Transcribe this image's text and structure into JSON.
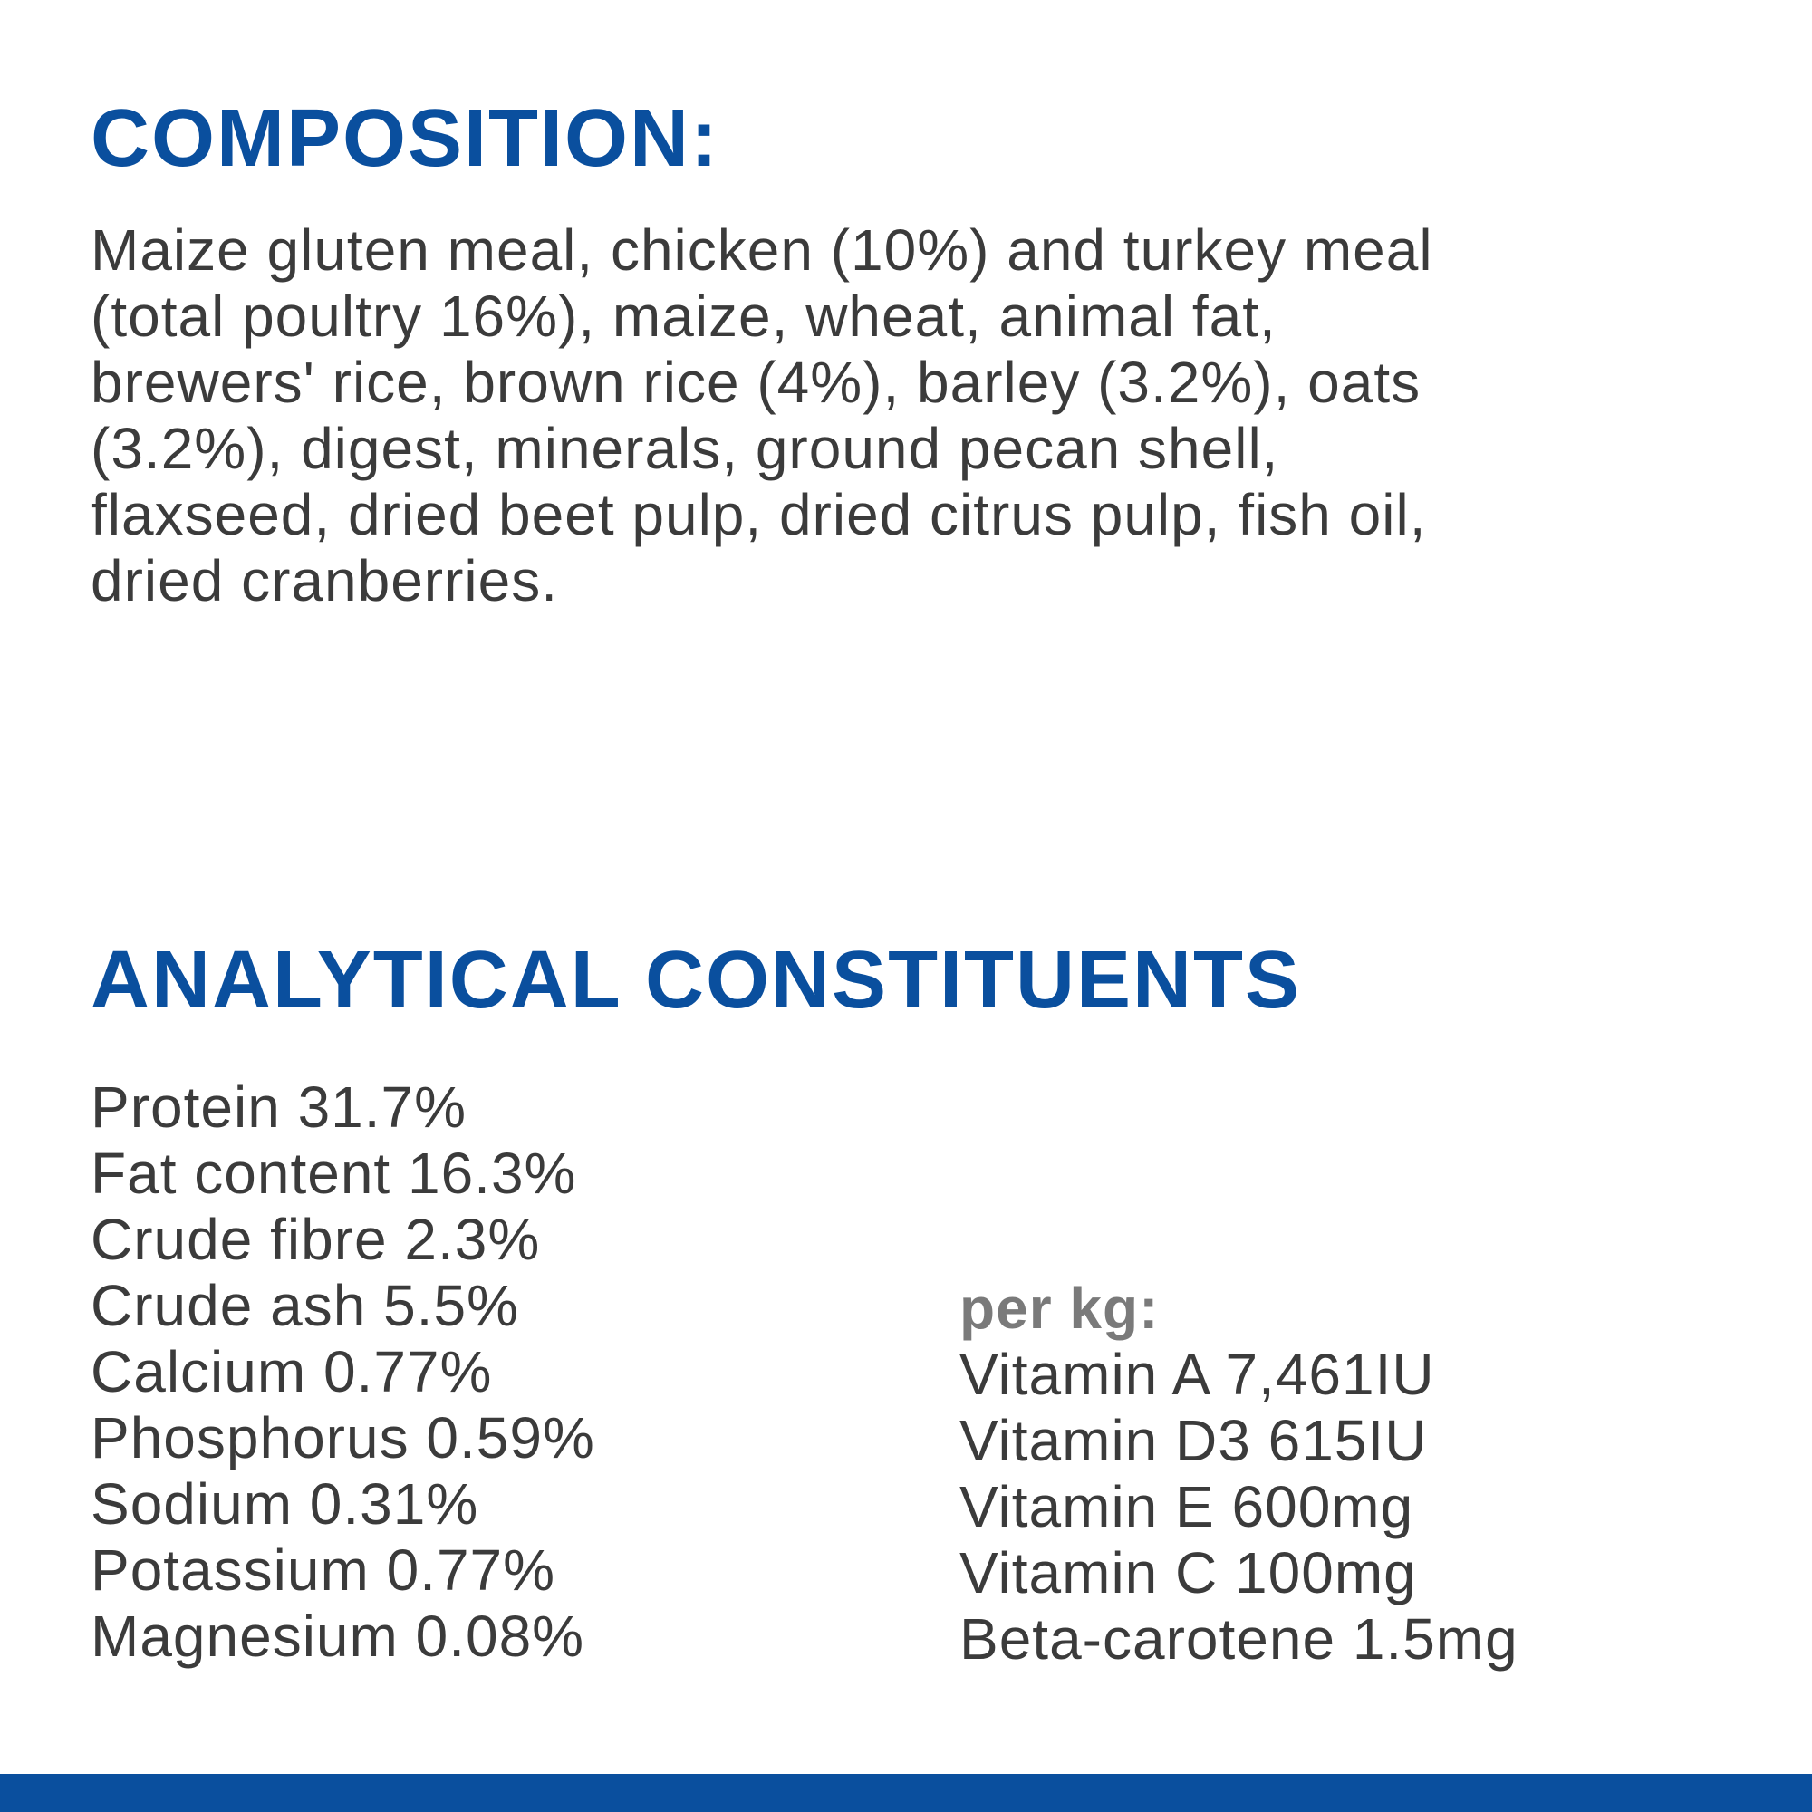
{
  "composition": {
    "title": "COMPOSITION:",
    "lines": [
      "Maize gluten meal, chicken (10%) and turkey meal",
      "(total poultry 16%), maize, wheat, animal fat,",
      "brewers' rice, brown rice (4%), barley (3.2%), oats",
      "(3.2%), digest, minerals, ground pecan shell,",
      "flaxseed, dried beet pulp, dried citrus pulp, fish oil,",
      "dried cranberries."
    ]
  },
  "analytical": {
    "title": "ANALYTICAL CONSTITUENTS",
    "items": [
      "Protein 31.7%",
      "Fat content 16.3%",
      "Crude fibre 2.3%",
      "Crude ash 5.5%",
      "Calcium 0.77%",
      "Phosphorus 0.59%",
      "Sodium 0.31%",
      "Potassium 0.77%",
      "Magnesium 0.08%"
    ],
    "per_kg": {
      "title": "per kg:",
      "items": [
        "Vitamin A 7,461IU",
        "Vitamin D3 615IU",
        "Vitamin E 600mg",
        "Vitamin C 100mg",
        "Beta-carotene 1.5mg"
      ]
    }
  }
}
